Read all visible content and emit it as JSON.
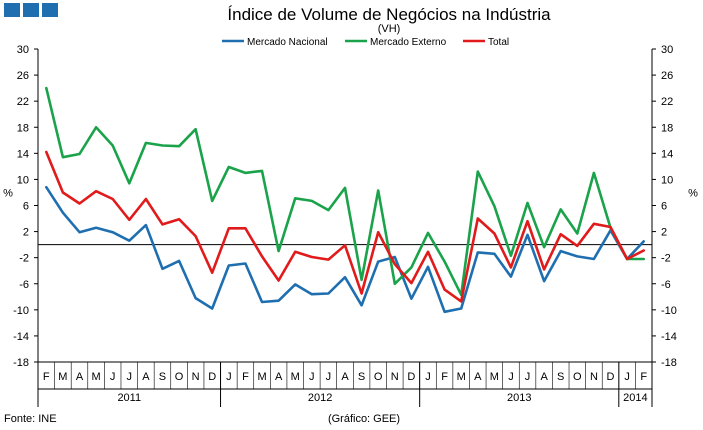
{
  "header": {
    "brand_blocks": [
      "block",
      "block",
      "block"
    ]
  },
  "colors": {
    "mercado_nacional": "#1f6fb0",
    "mercado_externo": "#1aa34a",
    "total": "#e11b1b",
    "axis": "#000000",
    "zero_line": "#000000"
  },
  "footer": {
    "source": "Fonte: INE",
    "credit": "(Gráfico: GEE)"
  },
  "chart_data": {
    "type": "line",
    "title": "Índice de Volume de Negócios na Indústria",
    "subtitle": "(VH)",
    "ylabel_left": "%",
    "ylabel_right": "%",
    "ylim": [
      -18,
      30
    ],
    "yticks": [
      30,
      26,
      22,
      18,
      14,
      10,
      6,
      2,
      -2,
      -6,
      -10,
      -14,
      -18
    ],
    "legend_position": "top",
    "categories": [
      "F",
      "M",
      "A",
      "M",
      "J",
      "J",
      "A",
      "S",
      "O",
      "N",
      "D",
      "J",
      "F",
      "M",
      "A",
      "M",
      "J",
      "J",
      "A",
      "S",
      "O",
      "N",
      "D",
      "J",
      "F",
      "M",
      "A",
      "M",
      "J",
      "J",
      "A",
      "S",
      "O",
      "N",
      "D",
      "J",
      "F"
    ],
    "years": [
      {
        "label": "2011",
        "start": 0,
        "end": 10
      },
      {
        "label": "2012",
        "start": 11,
        "end": 22
      },
      {
        "label": "2013",
        "start": 23,
        "end": 34
      },
      {
        "label": "2014",
        "start": 35,
        "end": 36
      }
    ],
    "series": [
      {
        "name": "Mercado Nacional",
        "color_key": "mercado_nacional",
        "values": [
          8.8,
          4.9,
          1.9,
          2.6,
          1.9,
          0.6,
          3.0,
          -3.7,
          -2.5,
          -8.2,
          -9.8,
          -3.2,
          -2.9,
          -8.8,
          -8.6,
          -6.1,
          -7.6,
          -7.5,
          -5.0,
          -9.3,
          -2.6,
          -1.9,
          -8.3,
          -3.4,
          -10.3,
          -9.8,
          -1.2,
          -1.4,
          -4.9,
          1.5,
          -5.6,
          -1.0,
          -1.8,
          -2.2,
          2.2,
          -2.2,
          0.5
        ]
      },
      {
        "name": "Mercado Externo",
        "color_key": "mercado_externo",
        "values": [
          24.0,
          13.4,
          13.9,
          18.0,
          15.2,
          9.4,
          15.6,
          15.2,
          15.1,
          17.7,
          6.7,
          11.9,
          11.0,
          11.3,
          -1.0,
          7.1,
          6.7,
          5.3,
          8.7,
          -5.4,
          8.3,
          -6.0,
          -3.5,
          1.8,
          -2.6,
          -7.7,
          11.2,
          5.9,
          -1.7,
          6.4,
          -0.4,
          5.4,
          1.7,
          11.0,
          2.6,
          -2.2,
          -2.2
        ]
      },
      {
        "name": "Total",
        "color_key": "total",
        "values": [
          14.2,
          8.0,
          6.3,
          8.2,
          7.0,
          3.8,
          7.0,
          3.1,
          3.9,
          1.3,
          -4.3,
          2.5,
          2.5,
          -1.8,
          -5.5,
          -1.1,
          -1.9,
          -2.3,
          -0.1,
          -7.5,
          1.9,
          -3.0,
          -5.9,
          -1.1,
          -6.9,
          -8.7,
          4.0,
          1.7,
          -3.5,
          3.6,
          -3.8,
          1.6,
          -0.2,
          3.2,
          2.7,
          -2.2,
          -0.9
        ]
      }
    ]
  }
}
